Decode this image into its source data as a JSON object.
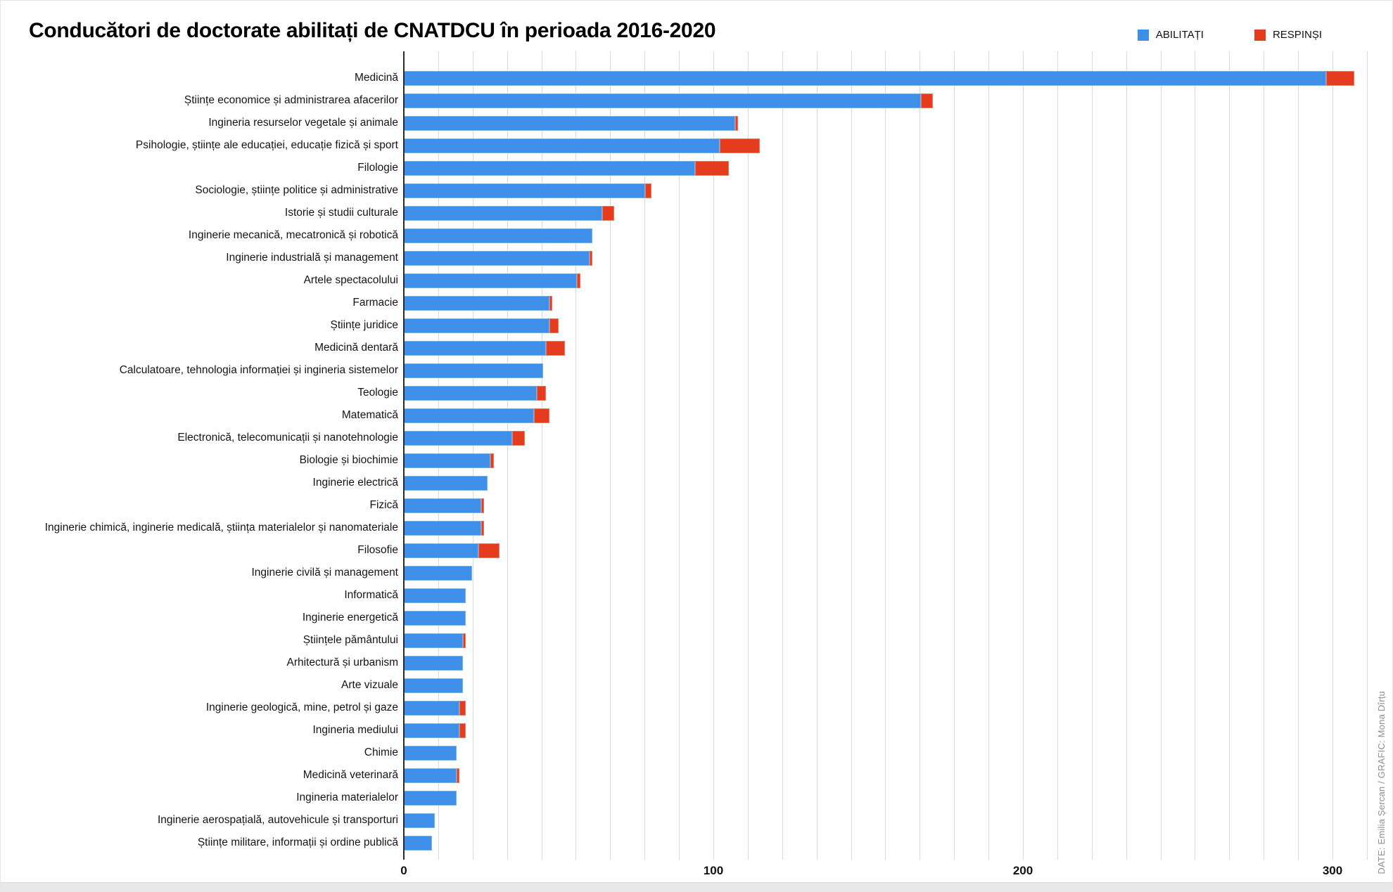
{
  "title": "Conducători de doctorate abilitați de CNATDCU în perioada 2016-2020",
  "credit": "DATE: Emilia Șercan / GRAFIC: Mona Dîrțu",
  "legend": {
    "items": [
      {
        "label": "ABILITAȚI",
        "color": "#3d8fe8"
      },
      {
        "label": "RESPINȘI",
        "color": "#e63c1e"
      }
    ]
  },
  "colors": {
    "abilitati": "#3d8fe8",
    "respinsi": "#e63c1e",
    "gridline": "#dadada",
    "axis": "#2b2b2b"
  },
  "chart_data": {
    "type": "bar",
    "orientation": "horizontal",
    "stacked": true,
    "title": "Conducători de doctorate abilitați de CNATDCU în perioada 2016-2020",
    "xlabel": "",
    "ylabel": "",
    "x_ticks": [
      0,
      100,
      200,
      300
    ],
    "xlim": [
      0,
      311
    ],
    "grid": true,
    "legend_position": "top-right",
    "categories": [
      "Medicină",
      "Științe economice și administrarea afacerilor",
      "Ingineria resurselor vegetale și animale",
      "Psihologie, științe ale educației, educație fizică și sport",
      "Filologie",
      "Sociologie, științe politice și administrative",
      "Istorie și studii culturale",
      "Inginerie mecanică, mecatronică și robotică",
      "Inginerie industrială și management",
      "Artele spectacolului",
      "Farmacie",
      "Științe juridice",
      "Medicină dentară",
      "Calculatoare, tehnologia informației și ingineria sistemelor",
      "Teologie",
      "Matematică",
      "Electronică, telecomunicații și nanotehnologie",
      "Biologie și biochimie",
      "Inginerie electrică",
      "Fizică",
      "Inginerie chimică, inginerie medicală, știința materialelor și nanomateriale",
      "Filosofie",
      "Inginerie civilă și management",
      "Informatică",
      "Inginerie energetică",
      "Științele pământului",
      "Arhitectură și urbanism",
      "Arte vizuale",
      "Inginerie geologică, mine, petrol și gaze",
      "Ingineria mediului",
      "Chimie",
      "Medicină veterinară",
      "Ingineria materialelor",
      "Inginerie aerospațială, autovehicule și transporturi",
      "Științe militare, informații și ordine publică"
    ],
    "series": [
      {
        "name": "ABILITAȚI",
        "color": "#3d8fe8",
        "values": [
          298,
          167,
          107,
          102,
          94,
          78,
          64,
          61,
          60,
          56,
          47,
          47,
          46,
          45,
          43,
          42,
          35,
          28,
          27,
          25,
          25,
          24,
          22,
          20,
          20,
          19,
          19,
          19,
          18,
          18,
          17,
          17,
          17,
          10,
          9
        ]
      },
      {
        "name": "RESPINȘI",
        "color": "#e63c1e",
        "values": [
          9,
          4,
          1,
          13,
          11,
          2,
          4,
          0,
          1,
          1,
          1,
          3,
          6,
          0,
          3,
          5,
          4,
          1,
          0,
          1,
          1,
          7,
          0,
          0,
          0,
          1,
          0,
          0,
          2,
          2,
          0,
          1,
          0,
          0,
          0
        ]
      }
    ]
  }
}
